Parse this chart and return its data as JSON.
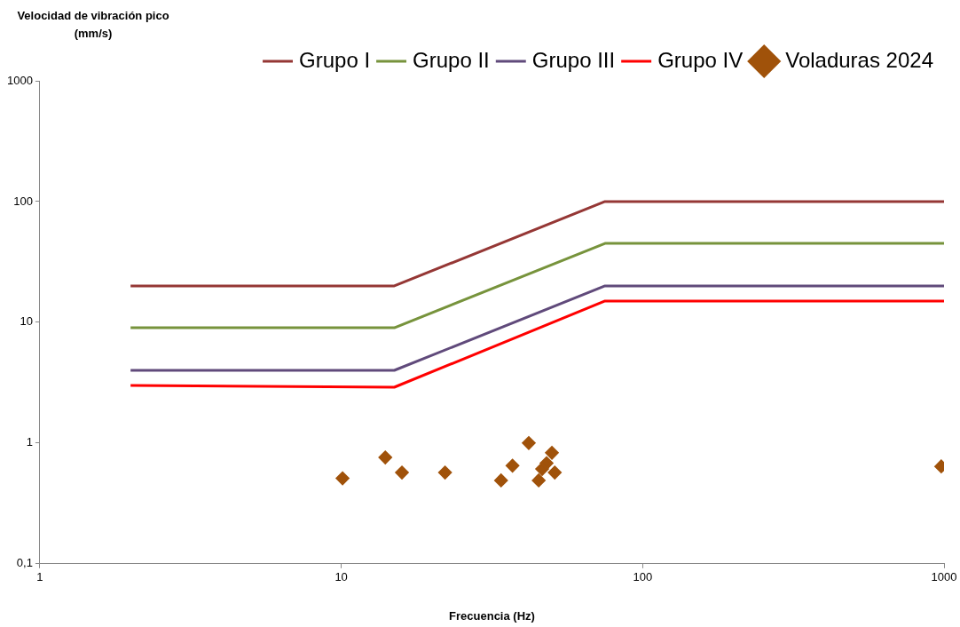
{
  "chart_data": {
    "type": "line",
    "xlabel": "Frecuencia (Hz)",
    "ylabel": "Velocidad de vibración pico (mm/s)",
    "log": "xy",
    "grid": false,
    "legend": "top right",
    "xlim": [
      1,
      1000
    ],
    "xticks": [
      1,
      10,
      100,
      1000
    ],
    "ylim": [
      0.1,
      1000
    ],
    "yticks": [
      {
        "value": 0.1,
        "label": "0,1"
      },
      1,
      10,
      100,
      1000
    ],
    "series": [
      {
        "name": "Grupo I",
        "color": "#953735",
        "marker": "none",
        "x": [
          2,
          15,
          75,
          1000
        ],
        "values": [
          20,
          20,
          100,
          100
        ]
      },
      {
        "name": "Grupo II",
        "color": "#77933c",
        "marker": "none",
        "x": [
          2,
          15,
          75,
          1000
        ],
        "values": [
          9,
          9,
          45,
          45
        ]
      },
      {
        "name": "Grupo III",
        "color": "#604a7b",
        "marker": "none",
        "x": [
          2,
          15,
          75,
          1000
        ],
        "values": [
          4,
          4,
          20,
          20
        ]
      },
      {
        "name": "Grupo IV",
        "color": "#ff0000",
        "marker": "none",
        "x": [
          2,
          15,
          75,
          1000
        ],
        "values": [
          3,
          2.9,
          15,
          15
        ]
      },
      {
        "name": "Voladuras 2024",
        "type": "scatter",
        "color": "#a0520a",
        "marker": "diamond",
        "x": [
          10.1,
          14,
          15.9,
          22.1,
          33.9,
          37,
          41.9,
          45.2,
          46.4,
          48,
          50,
          51.1,
          979
        ],
        "values": [
          0.51,
          0.76,
          0.57,
          0.57,
          0.49,
          0.65,
          1.0,
          0.49,
          0.61,
          0.68,
          0.83,
          0.57,
          0.64
        ]
      }
    ]
  }
}
